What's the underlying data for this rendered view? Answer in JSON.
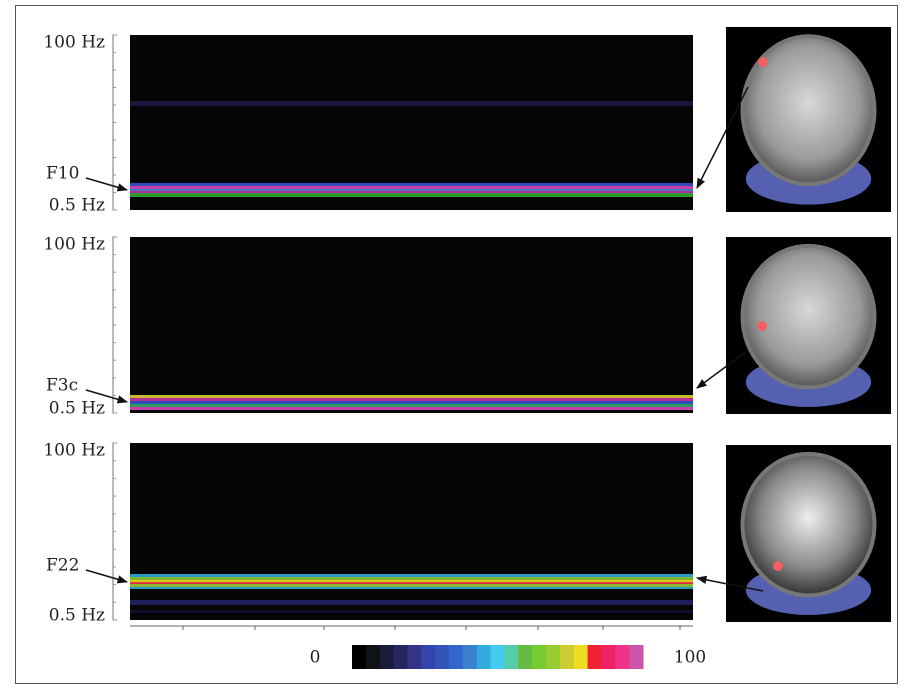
{
  "panels": [
    {
      "top_label": "100 Hz",
      "bottom_label": "0.5 Hz",
      "channel": "F10"
    },
    {
      "top_label": "100 Hz",
      "bottom_label": "0.5 Hz",
      "channel": "F3c"
    },
    {
      "top_label": "100 Hz",
      "bottom_label": "0.5 Hz",
      "channel": "F22"
    }
  ],
  "colorbar": {
    "min_label": "0",
    "max_label": "100"
  }
}
